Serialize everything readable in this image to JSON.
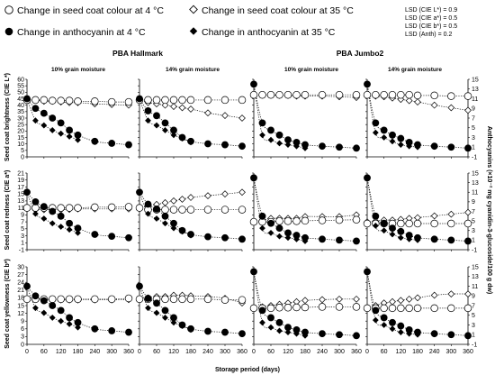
{
  "legend": [
    {
      "label": "Change in seed coat colour at 4 °C",
      "marker": "circle-open"
    },
    {
      "label": "Change in seed coat colour at 35 °C",
      "marker": "diamond-open"
    },
    {
      "label": "Change in anthocyanin at 4 °C",
      "marker": "circle-filled"
    },
    {
      "label": "Change in anthocyanin at 35 °C",
      "marker": "diamond-filled"
    }
  ],
  "lsd": [
    "LSD (CIE L*) = 0.9",
    "LSD (CIE a*) = 0.5",
    "LSD (CIE b*) = 0.5",
    "LSD (Anth) = 0.2"
  ],
  "cultivars": [
    "PBA Hallmark",
    "PBA Jumbo2"
  ],
  "moistures": [
    "10% grain moisture",
    "14% grain moisture"
  ],
  "x_label": "Storage period (days)",
  "y_right_label": "Anthocyanins (×10⁻² mg cyanidin-3-glucoside/100 g dw)",
  "colors": {
    "marker": "#000000",
    "axis": "#000000",
    "background": "#ffffff"
  },
  "chart_data": {
    "type": "scatter",
    "layout": "3 rows (L*, a*, b*) × 4 columns (PBA Hallmark 10%, PBA Hallmark 14%, PBA Jumbo2 10%, PBA Jumbo2 14%)",
    "x_ticks": [
      0,
      60,
      120,
      180,
      240,
      300,
      360
    ],
    "xlim": [
      0,
      360
    ],
    "x_label": "Storage period (days)",
    "y_right": {
      "label": "Anthocyanins (×10⁻² mg cyanidin-3-glucoside/100 g dw)",
      "ylim": [
        -1,
        15
      ],
      "ticks": [
        -1,
        1,
        3,
        5,
        7,
        9,
        11,
        13,
        15
      ]
    },
    "anth_4C_x": [
      0,
      30,
      60,
      90,
      120,
      150,
      180,
      240,
      300,
      360
    ],
    "anth_35C_x": [
      30,
      60,
      90,
      120,
      150,
      180
    ],
    "colour_x": [
      0,
      30,
      60,
      90,
      120,
      150,
      180,
      240,
      300,
      360
    ],
    "rows": [
      {
        "label": "Seed coat brightness (CIE L*)",
        "ylim": [
          0,
          60
        ],
        "ticks": [
          0,
          5,
          10,
          15,
          20,
          25,
          30,
          35,
          40,
          45,
          50,
          55,
          60
        ],
        "panels": [
          {
            "colour_4C": [
              44,
              44,
              44,
              43.5,
              43.5,
              43.5,
              43,
              43,
              42.5,
              42.5
            ],
            "colour_35C": [
              44,
              44,
              43,
              43,
              42.5,
              42,
              42,
              41,
              40.5,
              40
            ]
          },
          {
            "colour_4C": [
              44,
              44,
              44,
              44,
              44,
              44,
              44,
              44,
              44,
              44
            ],
            "colour_35C": [
              44,
              42,
              41,
              40,
              39,
              38,
              37,
              34,
              32,
              30
            ]
          },
          {
            "colour_4C": [
              48,
              48,
              48,
              48,
              48,
              48,
              48,
              48,
              48,
              48
            ],
            "colour_35C": [
              48,
              48,
              48,
              47.5,
              47.5,
              47,
              47,
              47,
              46.5,
              46
            ]
          },
          {
            "colour_4C": [
              48,
              48,
              48,
              48,
              48,
              48,
              47.5,
              47.5,
              47,
              47
            ],
            "colour_35C": [
              48,
              47,
              46.5,
              45.5,
              44.5,
              43.5,
              42.5,
              40,
              38,
              36
            ]
          }
        ]
      },
      {
        "label": "Seed coat redness (CIE a*)",
        "ylim": [
          -1,
          21
        ],
        "ticks": [
          -1,
          1,
          3,
          5,
          7,
          9,
          11,
          13,
          15,
          17,
          19,
          21
        ],
        "panels": [
          {
            "colour_4C": [
              11,
              11,
              11,
              11,
              11,
              11,
              11,
              11.2,
              11.2,
              11.3
            ],
            "colour_35C": [
              11,
              10.5,
              10.5,
              10.5,
              10.5,
              10.6,
              10.7,
              10.7,
              10.7,
              10.7
            ]
          },
          {
            "colour_4C": [
              11,
              10.5,
              10.5,
              10.5,
              10.5,
              10.5,
              10.5,
              10.5,
              10.5,
              10.5
            ],
            "colour_35C": [
              11,
              11.5,
              12,
              12.5,
              13,
              13.5,
              14,
              14.5,
              15,
              15.5
            ]
          },
          {
            "colour_4C": [
              7,
              7,
              7,
              7.2,
              7.2,
              7.2,
              7.3,
              7.4,
              7.5,
              7.6
            ],
            "colour_35C": [
              7,
              7.5,
              8,
              8,
              8,
              8,
              8.5,
              8.5,
              8.5,
              9
            ]
          },
          {
            "colour_4C": [
              6.5,
              6.5,
              6.5,
              6.5,
              6.5,
              6.5,
              6.5,
              6.5,
              6.5,
              6.5
            ],
            "colour_35C": [
              7,
              7.2,
              7.5,
              7.5,
              7.7,
              8,
              8.2,
              8.7,
              9.2,
              9.7
            ]
          }
        ]
      },
      {
        "label": "Seed coat yellowness (CIE b*)",
        "ylim": [
          0,
          30
        ],
        "ticks": [
          0,
          3,
          6,
          9,
          12,
          15,
          18,
          21,
          24,
          27,
          30
        ],
        "panels": [
          {
            "colour_4C": [
              17.5,
              17.5,
              17.5,
              17.5,
              17.5,
              17.5,
              17.5,
              17.5,
              17.5,
              17.8
            ],
            "colour_35C": [
              17.5,
              17.5,
              17.5,
              17.2,
              17.2,
              17.2,
              17.2,
              17.2,
              17.2,
              17.3
            ]
          },
          {
            "colour_4C": [
              17.5,
              17.5,
              17.5,
              17.5,
              17.5,
              17.5,
              17.5,
              17.5,
              17.2,
              17.2
            ],
            "colour_35C": [
              17.5,
              18,
              18.5,
              18.5,
              19,
              19,
              18.8,
              18.5,
              17.8,
              16
            ]
          },
          {
            "colour_4C": [
              14,
              14,
              14,
              14.2,
              14.2,
              14.3,
              14.3,
              14.5,
              14.5,
              14.5
            ],
            "colour_35C": [
              14,
              14.5,
              15,
              15.5,
              16,
              16.5,
              17,
              17.3,
              17.5,
              17.5
            ]
          },
          {
            "colour_4C": [
              14,
              14,
              14,
              14,
              14,
              14,
              14,
              14,
              14,
              14
            ],
            "colour_35C": [
              14,
              15,
              16,
              16.5,
              17,
              17.5,
              18,
              19,
              19.5,
              19.5
            ]
          }
        ]
      }
    ],
    "anthocyanin": [
      {
        "anth_4C": [
          11,
          9,
          8,
          7,
          6,
          4.5,
          3.5,
          2.2,
          1.8,
          1.5
        ],
        "anth_35C": [
          6.5,
          5.5,
          4.5,
          3.8,
          3.2,
          2.5
        ]
      },
      {
        "anth_4C": [
          11,
          8.5,
          7.5,
          6,
          4.5,
          3,
          2.2,
          1.7,
          1.5,
          1.2
        ],
        "anth_35C": [
          6.5,
          5.5,
          4.5,
          3.5,
          2.8,
          2
        ]
      },
      {
        "anth_4C": [
          14,
          6,
          4.5,
          3.5,
          2.5,
          2,
          1.5,
          1.2,
          1,
          0.8
        ],
        "anth_35C": [
          3.5,
          2.5,
          1.8,
          1.5,
          1.2,
          0.8
        ]
      },
      {
        "anth_4C": [
          14,
          6,
          4.5,
          3.5,
          2.8,
          2,
          1.5,
          1.2,
          1,
          0.8
        ],
        "anth_35C": [
          4,
          3,
          2.2,
          1.5,
          1.2,
          1
        ]
      }
    ]
  }
}
